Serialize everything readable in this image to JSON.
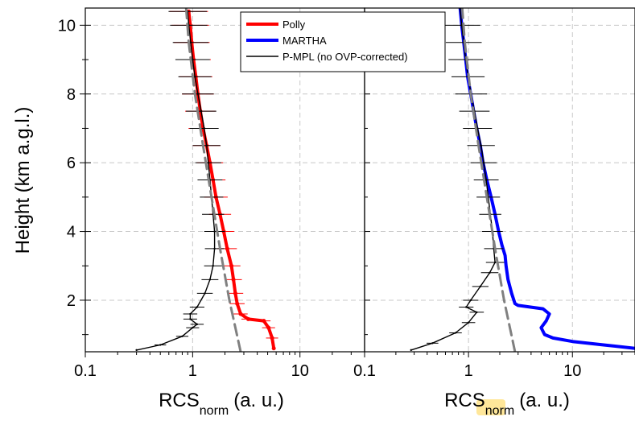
{
  "chart_data": {
    "type": "line",
    "panels": [
      {
        "id": "left",
        "xlabel_main": "RCS",
        "xlabel_sub": "norm",
        "xlabel_units": "(a. u.)",
        "xscale": "log",
        "xlim": [
          0.1,
          40
        ],
        "xticks": [
          "0.1",
          "1",
          "10"
        ],
        "ylim": [
          0.5,
          10.5
        ],
        "grid": true,
        "series": [
          {
            "name": "Polly",
            "color": "#ff0000",
            "points": [
              [
                5.7,
                0.6
              ],
              [
                5.5,
                0.9
              ],
              [
                5.1,
                1.2
              ],
              [
                4.6,
                1.4
              ],
              [
                3.3,
                1.45
              ],
              [
                2.8,
                1.6
              ],
              [
                2.6,
                1.9
              ],
              [
                2.5,
                2.2
              ],
              [
                2.4,
                2.6
              ],
              [
                2.3,
                3.0
              ],
              [
                2.1,
                3.5
              ],
              [
                1.95,
                4.0
              ],
              [
                1.8,
                4.5
              ],
              [
                1.65,
                5.0
              ],
              [
                1.55,
                5.5
              ],
              [
                1.45,
                6.0
              ],
              [
                1.35,
                6.5
              ],
              [
                1.25,
                7.0
              ],
              [
                1.18,
                7.5
              ],
              [
                1.12,
                8.0
              ],
              [
                1.07,
                8.5
              ],
              [
                1.02,
                9.0
              ],
              [
                0.98,
                9.5
              ],
              [
                0.95,
                10.0
              ],
              [
                0.92,
                10.4
              ]
            ],
            "has_error_bars": true
          },
          {
            "name": "P-MPL (no OVP-corrected)",
            "color": "#000000",
            "points": [
              [
                0.3,
                0.55
              ],
              [
                0.5,
                0.7
              ],
              [
                0.8,
                0.95
              ],
              [
                1.0,
                1.2
              ],
              [
                1.1,
                1.3
              ],
              [
                0.95,
                1.45
              ],
              [
                0.95,
                1.6
              ],
              [
                1.1,
                1.8
              ],
              [
                1.3,
                2.2
              ],
              [
                1.45,
                2.6
              ],
              [
                1.55,
                3.0
              ],
              [
                1.6,
                3.5
              ],
              [
                1.6,
                4.0
              ],
              [
                1.55,
                4.5
              ],
              [
                1.5,
                5.0
              ],
              [
                1.45,
                5.5
              ],
              [
                1.4,
                6.0
              ],
              [
                1.35,
                6.5
              ],
              [
                1.28,
                7.0
              ],
              [
                1.2,
                7.5
              ],
              [
                1.12,
                8.0
              ],
              [
                1.05,
                8.5
              ],
              [
                1.0,
                9.0
              ],
              [
                0.96,
                9.5
              ],
              [
                0.92,
                10.0
              ],
              [
                0.9,
                10.4
              ]
            ],
            "has_error_bars": true
          },
          {
            "name": "",
            "color": "#808080",
            "dashed": true,
            "points": [
              [
                2.8,
                0.5
              ],
              [
                2.2,
                2.0
              ],
              [
                1.8,
                3.5
              ],
              [
                1.5,
                5.0
              ],
              [
                1.25,
                6.5
              ],
              [
                1.05,
                8.0
              ],
              [
                0.92,
                9.5
              ],
              [
                0.87,
                10.5
              ]
            ]
          }
        ]
      },
      {
        "id": "right",
        "xlabel_main": "RCS",
        "xlabel_sub": "norm",
        "xlabel_units": "(a. u.)",
        "xscale": "log",
        "xlim": [
          0.1,
          40
        ],
        "xticks": [
          "0.1",
          "1",
          "10"
        ],
        "ylim": [
          0.5,
          10.5
        ],
        "grid": true,
        "series": [
          {
            "name": "MARTHA",
            "color": "#0000ff",
            "points": [
              [
                40,
                0.6
              ],
              [
                20,
                0.7
              ],
              [
                10,
                0.8
              ],
              [
                6.5,
                0.9
              ],
              [
                5.4,
                1.0
              ],
              [
                5.0,
                1.2
              ],
              [
                5.6,
                1.4
              ],
              [
                6.0,
                1.6
              ],
              [
                5.2,
                1.75
              ],
              [
                3.0,
                1.85
              ],
              [
                2.8,
                1.9
              ],
              [
                2.6,
                2.2
              ],
              [
                2.4,
                2.6
              ],
              [
                2.3,
                3.0
              ],
              [
                2.25,
                3.3
              ],
              [
                2.1,
                3.6
              ],
              [
                1.95,
                4.0
              ],
              [
                1.8,
                4.5
              ],
              [
                1.65,
                5.0
              ],
              [
                1.5,
                5.5
              ],
              [
                1.38,
                6.0
              ],
              [
                1.3,
                6.5
              ],
              [
                1.2,
                7.0
              ],
              [
                1.12,
                7.5
              ],
              [
                1.05,
                8.0
              ],
              [
                0.98,
                8.5
              ],
              [
                0.94,
                9.0
              ],
              [
                0.9,
                9.5
              ],
              [
                0.86,
                10.0
              ],
              [
                0.83,
                10.5
              ]
            ]
          },
          {
            "name": "P-MPL (no OVP-corrected)",
            "color": "#000000",
            "points": [
              [
                0.28,
                0.55
              ],
              [
                0.45,
                0.75
              ],
              [
                0.75,
                1.05
              ],
              [
                1.0,
                1.35
              ],
              [
                1.2,
                1.65
              ],
              [
                0.95,
                1.8
              ],
              [
                1.05,
                2.0
              ],
              [
                1.3,
                2.4
              ],
              [
                1.6,
                2.8
              ],
              [
                1.8,
                3.1
              ],
              [
                1.75,
                3.5
              ],
              [
                1.7,
                4.0
              ],
              [
                1.62,
                4.5
              ],
              [
                1.55,
                5.0
              ],
              [
                1.48,
                5.5
              ],
              [
                1.4,
                6.0
              ],
              [
                1.32,
                6.5
              ],
              [
                1.22,
                7.0
              ],
              [
                1.14,
                7.5
              ],
              [
                1.06,
                8.0
              ],
              [
                0.99,
                8.5
              ],
              [
                0.94,
                9.0
              ],
              [
                0.9,
                9.5
              ],
              [
                0.86,
                10.0
              ],
              [
                0.83,
                10.5
              ]
            ],
            "has_error_bars": true
          },
          {
            "name": "",
            "color": "#808080",
            "dashed": true,
            "points": [
              [
                2.8,
                0.5
              ],
              [
                2.2,
                2.0
              ],
              [
                1.8,
                3.5
              ],
              [
                1.5,
                5.0
              ],
              [
                1.25,
                6.5
              ],
              [
                1.05,
                8.0
              ],
              [
                0.92,
                9.5
              ],
              [
                0.87,
                10.5
              ]
            ]
          }
        ]
      }
    ],
    "ylabel": "Height (km a.g.l.)",
    "yticks": [
      "2",
      "4",
      "6",
      "8",
      "10"
    ],
    "legend": {
      "placement": "top-center",
      "entries": [
        {
          "label": "Polly",
          "color": "#ff0000"
        },
        {
          "label": "MARTHA",
          "color": "#0000ff"
        },
        {
          "label": "P-MPL (no OVP-corrected)",
          "color": "#000000"
        }
      ]
    }
  }
}
